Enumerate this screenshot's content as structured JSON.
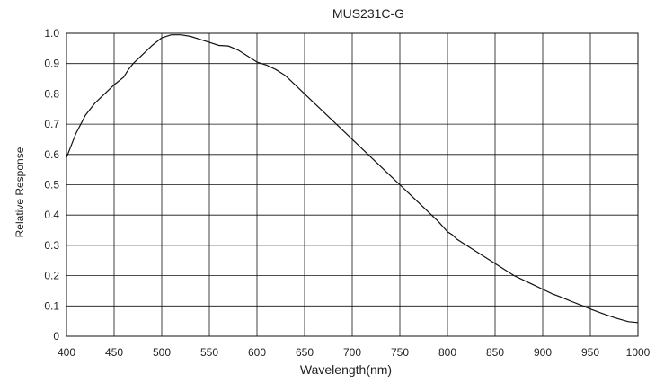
{
  "chart_data": {
    "type": "line",
    "title": "MUS231C-G",
    "xlabel": "Wavelength(nm)",
    "ylabel": "Relative Response",
    "xlim": [
      400,
      1000
    ],
    "ylim": [
      0,
      1.0
    ],
    "x_ticks": [
      "400",
      "450",
      "500",
      "550",
      "600",
      "650",
      "700",
      "750",
      "800",
      "850",
      "900",
      "950",
      "1000"
    ],
    "y_ticks": [
      "0",
      "0.1",
      "0.2",
      "0.3",
      "0.4",
      "0.5",
      "0.6",
      "0.7",
      "0.8",
      "0.9",
      "1.0"
    ],
    "grid": true,
    "series": [
      {
        "x": [
          400,
          410,
          420,
          430,
          440,
          450,
          460,
          465,
          470,
          480,
          490,
          500,
          510,
          520,
          530,
          540,
          550,
          560,
          570,
          580,
          590,
          600,
          610,
          620,
          630,
          640,
          650,
          660,
          670,
          680,
          690,
          700,
          710,
          720,
          730,
          740,
          750,
          760,
          770,
          780,
          790,
          800,
          805,
          810,
          820,
          830,
          840,
          850,
          860,
          870,
          880,
          890,
          900,
          910,
          920,
          930,
          940,
          950,
          960,
          970,
          980,
          990,
          1000
        ],
        "y": [
          0.59,
          0.67,
          0.73,
          0.77,
          0.8,
          0.83,
          0.855,
          0.88,
          0.9,
          0.93,
          0.96,
          0.985,
          0.995,
          0.995,
          0.99,
          0.98,
          0.97,
          0.96,
          0.958,
          0.945,
          0.925,
          0.905,
          0.895,
          0.88,
          0.86,
          0.83,
          0.8,
          0.77,
          0.74,
          0.71,
          0.68,
          0.65,
          0.62,
          0.59,
          0.56,
          0.53,
          0.5,
          0.47,
          0.44,
          0.41,
          0.38,
          0.345,
          0.335,
          0.32,
          0.3,
          0.28,
          0.26,
          0.24,
          0.22,
          0.2,
          0.185,
          0.17,
          0.155,
          0.14,
          0.128,
          0.115,
          0.103,
          0.09,
          0.078,
          0.067,
          0.057,
          0.048,
          0.045
        ],
        "color": "#111111"
      }
    ]
  }
}
